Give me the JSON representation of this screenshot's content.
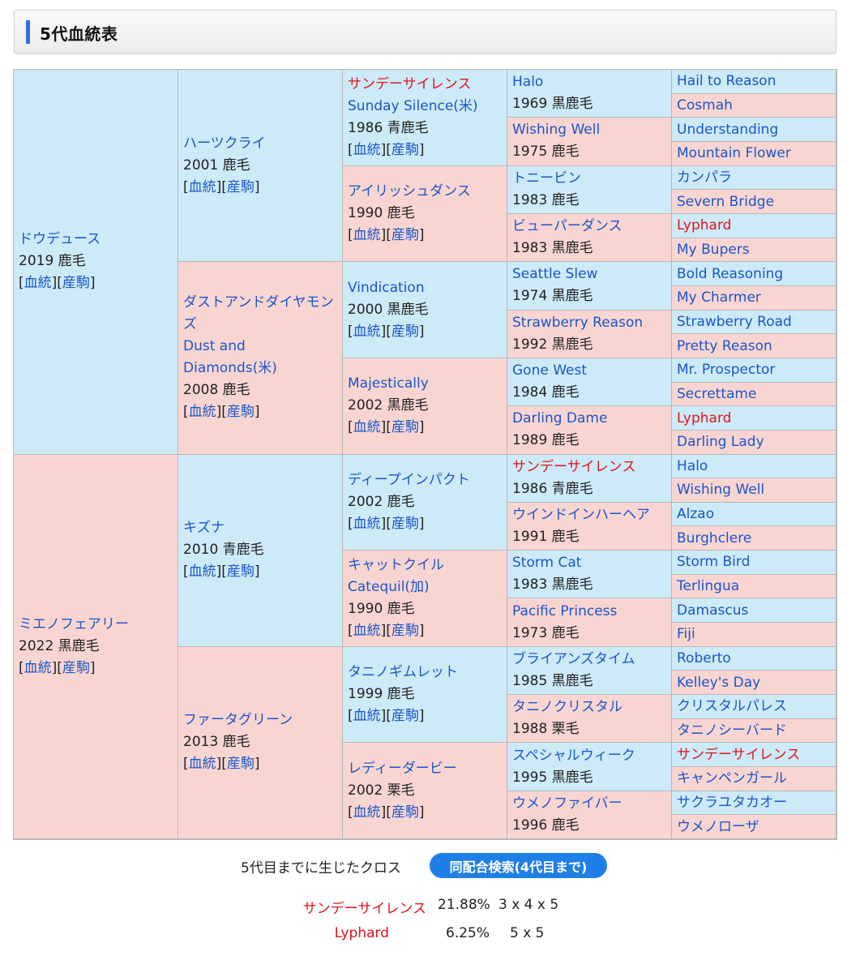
{
  "header": {
    "title": "5代血統表"
  },
  "link_labels": {
    "pedigree": "血統",
    "offspring": "産駒"
  },
  "horse": {
    "name": "ドウデュース",
    "year": "2019 鹿毛"
  },
  "ped": {
    "s": {
      "name": "ハーツクライ",
      "year": "2001 鹿毛"
    },
    "ss": {
      "name": "サンデーサイレンス",
      "alt": "Sunday Silence(米)",
      "year": "1986 青鹿毛"
    },
    "ssg4a": {
      "name": "Halo",
      "year": "1969 黒鹿毛"
    },
    "ssg4b": {
      "name": "Wishing Well",
      "year": "1975 鹿毛"
    },
    "sd": {
      "name": "アイリッシュダンス",
      "year": "1990 鹿毛"
    },
    "sdg4a": {
      "name": "トニービン",
      "year": "1983 鹿毛"
    },
    "sdg4b": {
      "name": "ビューパーダンス",
      "year": "1983 黒鹿毛"
    },
    "d": {
      "name": "ダストアンドダイヤモンズ",
      "alt": "Dust and Diamonds(米)",
      "year": "2008 鹿毛"
    },
    "ds": {
      "name": "Vindication",
      "year": "2000 黒鹿毛"
    },
    "dsg4a": {
      "name": "Seattle Slew",
      "year": "1974 黒鹿毛"
    },
    "dsg4b": {
      "name": "Strawberry Reason",
      "year": "1992 黒鹿毛"
    },
    "dd": {
      "name": "Majestically",
      "year": "2002 黒鹿毛"
    },
    "ddg4a": {
      "name": "Gone West",
      "year": "1984 鹿毛"
    },
    "ddg4b": {
      "name": "Darling Dame",
      "year": "1989 鹿毛"
    },
    "g5top": [
      "Hail to Reason",
      "Cosmah",
      "Understanding",
      "Mountain Flower",
      "カンパラ",
      "Severn Bridge",
      "Lyphard",
      "My Bupers",
      "Bold Reasoning",
      "My Charmer",
      "Strawberry Road",
      "Pretty Reason",
      "Mr. Prospector",
      "Secrettame",
      "Lyphard",
      "Darling Lady"
    ]
  },
  "dam": {
    "name": "ミエノフェアリー",
    "year": "2022 黒鹿毛"
  },
  "ped2": {
    "s": {
      "name": "キズナ",
      "year": "2010 青鹿毛"
    },
    "ss": {
      "name": "ディープインパクト",
      "year": "2002 鹿毛"
    },
    "ssg4a": {
      "name": "サンデーサイレンス",
      "year": "1986 青鹿毛"
    },
    "ssg4b": {
      "name": "ウインドインハーヘア",
      "year": "1991 鹿毛"
    },
    "sd": {
      "name": "キャットクイル",
      "alt": "Catequil(加)",
      "year": "1990 鹿毛"
    },
    "sdg4a": {
      "name": "Storm Cat",
      "year": "1983 黒鹿毛"
    },
    "sdg4b": {
      "name": "Pacific Princess",
      "year": "1973 鹿毛"
    },
    "d": {
      "name": "ファータグリーン",
      "year": "2013 鹿毛"
    },
    "ds": {
      "name": "タニノギムレット",
      "year": "1999 鹿毛"
    },
    "dsg4a": {
      "name": "ブライアンズタイム",
      "year": "1985 黒鹿毛"
    },
    "dsg4b": {
      "name": "タニノクリスタル",
      "year": "1988 栗毛"
    },
    "dd": {
      "name": "レディーダービー",
      "year": "2002 栗毛"
    },
    "ddg4a": {
      "name": "スペシャルウィーク",
      "year": "1995 黒鹿毛"
    },
    "ddg4b": {
      "name": "ウメノファイバー",
      "year": "1996 鹿毛"
    },
    "g5bot": [
      "Halo",
      "Wishing Well",
      "Alzao",
      "Burghclere",
      "Storm Bird",
      "Terlingua",
      "Damascus",
      "Fiji",
      "Roberto",
      "Kelley's Day",
      "クリスタルパレス",
      "タニノシーバード",
      "サンデーサイレンス",
      "キャンペンガール",
      "サクラユタカオー",
      "ウメノローザ"
    ]
  },
  "cross": {
    "title": "5代目までに生じたクロス",
    "search_label": "同配合検索(4代目まで)",
    "rows": [
      {
        "name": "サンデーサイレンス",
        "pct": "21.88%",
        "pattern": "3 x 4 x 5"
      },
      {
        "name": "Lyphard",
        "pct": "6.25%",
        "pattern": "5 x 5"
      }
    ]
  }
}
